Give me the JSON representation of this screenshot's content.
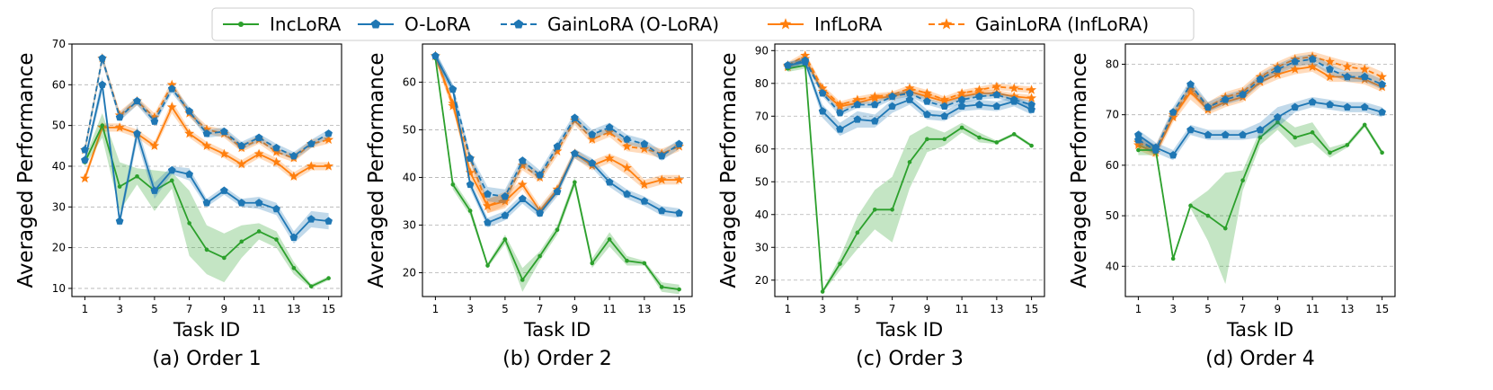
{
  "legend": {
    "entries": [
      {
        "label": "IncLoRA",
        "color": "#2ca02c",
        "dash": "solid",
        "marker": "dot"
      },
      {
        "label": "O-LoRA",
        "color": "#1f77b4",
        "dash": "solid",
        "marker": "pentagon"
      },
      {
        "label": "GainLoRA (O-LoRA)",
        "color": "#1f77b4",
        "dash": "dashed",
        "marker": "pentagon"
      },
      {
        "label": "InfLoRA",
        "color": "#ff7f0e",
        "dash": "solid",
        "marker": "star"
      },
      {
        "label": "GainLoRA (InfLoRA)",
        "color": "#ff7f0e",
        "dash": "dashed",
        "marker": "star"
      }
    ]
  },
  "chart_data": [
    {
      "type": "line",
      "caption": "(a) Order 1",
      "xlabel": "Task ID",
      "ylabel": "Averaged Performance",
      "x": [
        1,
        2,
        3,
        4,
        5,
        6,
        7,
        8,
        9,
        10,
        11,
        12,
        13,
        14,
        15
      ],
      "xticks": [
        "1",
        "3",
        "5",
        "7",
        "9",
        "11",
        "13",
        "15"
      ],
      "ylim": [
        8,
        70
      ],
      "yticks": [
        10,
        20,
        30,
        40,
        50,
        60,
        70
      ],
      "series": [
        {
          "name": "IncLoRA",
          "values": [
            41,
            50,
            35,
            37.5,
            34,
            36.5,
            26,
            19.5,
            17.5,
            21.5,
            24,
            22,
            15,
            10.5,
            12.5
          ],
          "band": [
            1,
            3,
            6,
            2,
            5,
            2,
            8,
            6,
            6,
            4,
            2,
            2,
            1.5,
            0.5,
            0.5
          ]
        },
        {
          "name": "O-LoRA",
          "values": [
            41.5,
            60,
            26.5,
            48,
            34,
            39,
            38,
            31,
            34,
            31,
            31,
            29.5,
            22.5,
            27,
            26.5
          ],
          "band": [
            1,
            2,
            1.5,
            2,
            2,
            1,
            1.5,
            1,
            1,
            1,
            1.5,
            1.5,
            1.5,
            2,
            2
          ]
        },
        {
          "name": "GainLoRA (O-LoRA)",
          "values": [
            44,
            66.5,
            52,
            56,
            51,
            59,
            53.5,
            48,
            48.5,
            45,
            47,
            44.5,
            42.5,
            45.5,
            48
          ],
          "band": [
            1,
            1,
            1,
            1,
            1,
            1,
            1,
            1,
            1,
            1,
            1,
            1,
            1,
            1,
            1
          ]
        },
        {
          "name": "InfLoRA",
          "values": [
            37,
            49.5,
            49.5,
            48,
            45,
            54.5,
            48,
            45,
            43,
            40.5,
            43,
            41,
            37.5,
            40,
            40
          ],
          "band": [
            1,
            1,
            1,
            1,
            1,
            1.5,
            1,
            1,
            1,
            1,
            1,
            1,
            1,
            1,
            1
          ]
        },
        {
          "name": "GainLoRA (InfLoRA)",
          "values": [
            44,
            66.5,
            52.5,
            56,
            52,
            60,
            53,
            49,
            48,
            44.5,
            46.5,
            43.5,
            42,
            45.5,
            46.5
          ],
          "band": [
            1,
            1,
            1,
            1,
            1,
            1,
            1,
            1,
            1,
            1,
            1,
            1,
            1,
            1,
            1
          ]
        }
      ]
    },
    {
      "type": "line",
      "caption": "(b) Order 2",
      "xlabel": "Task ID",
      "ylabel": "Averaged Performance",
      "x": [
        1,
        2,
        3,
        4,
        5,
        6,
        7,
        8,
        9,
        10,
        11,
        12,
        13,
        14,
        15
      ],
      "xticks": [
        "1",
        "3",
        "5",
        "7",
        "9",
        "11",
        "13",
        "15"
      ],
      "ylim": [
        15,
        68
      ],
      "yticks": [
        20,
        30,
        40,
        50,
        60
      ],
      "series": [
        {
          "name": "IncLoRA",
          "values": [
            65,
            38.5,
            33,
            21.5,
            27,
            18.5,
            23.5,
            29,
            39,
            22,
            27,
            22.5,
            22,
            17,
            16.5
          ],
          "band": [
            1,
            1,
            1,
            0.5,
            1,
            2.5,
            1,
            1,
            1,
            1,
            1.5,
            1,
            0.5,
            1,
            1
          ]
        },
        {
          "name": "O-LoRA",
          "values": [
            65.5,
            58.5,
            38.5,
            30.5,
            32,
            35.5,
            32.5,
            37,
            45,
            43,
            39,
            36.5,
            35,
            33,
            32.5
          ],
          "band": [
            1,
            1,
            1,
            1,
            1,
            1,
            1,
            1,
            1,
            1,
            1,
            1,
            1,
            1,
            1
          ]
        },
        {
          "name": "GainLoRA (O-LoRA)",
          "values": [
            65.5,
            58.5,
            44,
            36.5,
            36,
            43.5,
            40.5,
            46.5,
            52.5,
            49,
            50.5,
            48,
            47,
            44.5,
            47
          ],
          "band": [
            1,
            1,
            1,
            1.5,
            1.5,
            1,
            1,
            1,
            1,
            1,
            1,
            1,
            1,
            1,
            1
          ]
        },
        {
          "name": "InfLoRA",
          "values": [
            65.5,
            55.5,
            41,
            34,
            35,
            38.5,
            33,
            37.5,
            45,
            42.5,
            44,
            42,
            38.5,
            39.5,
            39.5
          ],
          "band": [
            1,
            1,
            1.5,
            1.5,
            1.5,
            1,
            1,
            1,
            1,
            1,
            1,
            1.5,
            1,
            1,
            1
          ]
        },
        {
          "name": "GainLoRA (InfLoRA)",
          "values": [
            65.5,
            55,
            44,
            34,
            35.5,
            42.5,
            40,
            45.5,
            52,
            48,
            49.5,
            46.5,
            46,
            45,
            46.5
          ],
          "band": [
            1,
            1,
            1,
            1.5,
            1.5,
            1,
            1,
            1,
            1,
            1,
            1,
            1,
            1,
            1,
            1
          ]
        }
      ]
    },
    {
      "type": "line",
      "caption": "(c) Order 3",
      "xlabel": "Task ID",
      "ylabel": "Averaged Performance",
      "x": [
        1,
        2,
        3,
        4,
        5,
        6,
        7,
        8,
        9,
        10,
        11,
        12,
        13,
        14,
        15
      ],
      "xticks": [
        "1",
        "3",
        "5",
        "7",
        "9",
        "11",
        "13",
        "15"
      ],
      "ylim": [
        15,
        92
      ],
      "yticks": [
        20,
        30,
        40,
        50,
        60,
        70,
        80,
        90
      ],
      "series": [
        {
          "name": "IncLoRA",
          "values": [
            84.5,
            85.5,
            16.5,
            25,
            34.5,
            41.5,
            41.5,
            56,
            63,
            63,
            66.5,
            63.5,
            62,
            64.5,
            61
          ],
          "band": [
            1,
            1,
            0.5,
            2,
            5,
            6,
            10,
            8,
            4,
            2,
            1.5,
            1.5,
            0.5,
            0.5,
            0.5
          ]
        },
        {
          "name": "O-LoRA",
          "values": [
            85.5,
            86.5,
            71.5,
            66,
            69,
            68.5,
            73,
            75,
            70.5,
            70,
            73,
            73.5,
            73,
            74.5,
            72
          ],
          "band": [
            1,
            1,
            2,
            2,
            2.5,
            2,
            2,
            1.5,
            1.5,
            1.5,
            1.5,
            1.5,
            1.5,
            1.5,
            1.5
          ]
        },
        {
          "name": "GainLoRA (O-LoRA)",
          "values": [
            85.5,
            87,
            77,
            71,
            73.5,
            73.5,
            76,
            77,
            74.5,
            73,
            75,
            76,
            76.5,
            75,
            73.5
          ],
          "band": [
            1,
            1,
            1,
            1,
            1,
            1,
            1,
            1,
            1,
            1,
            1,
            1,
            1,
            1,
            1
          ]
        },
        {
          "name": "InfLoRA",
          "values": [
            85,
            87.5,
            77.5,
            73,
            74,
            75.5,
            76,
            77.5,
            76,
            74.5,
            76,
            77,
            77,
            76,
            75.5
          ],
          "band": [
            1,
            1,
            1,
            1,
            1,
            1,
            1,
            1,
            1,
            1,
            1,
            1,
            1,
            1,
            1
          ]
        },
        {
          "name": "GainLoRA (InfLoRA)",
          "values": [
            85.5,
            88.5,
            78.5,
            73.5,
            75,
            76,
            76.5,
            78.5,
            77,
            75,
            77,
            78,
            79,
            78.5,
            78
          ],
          "band": [
            1,
            1,
            1,
            1,
            1,
            1,
            1,
            1,
            1,
            1,
            1,
            1,
            1,
            1,
            1
          ]
        }
      ]
    },
    {
      "type": "line",
      "caption": "(d) Order 4",
      "xlabel": "Task ID",
      "ylabel": "Averaged Performance",
      "x": [
        1,
        2,
        3,
        4,
        5,
        6,
        7,
        8,
        9,
        10,
        11,
        12,
        13,
        14,
        15
      ],
      "xticks": [
        "1",
        "3",
        "5",
        "7",
        "9",
        "11",
        "13",
        "15"
      ],
      "ylim": [
        34,
        84
      ],
      "yticks": [
        40,
        50,
        60,
        70,
        80
      ],
      "series": [
        {
          "name": "IncLoRA",
          "values": [
            63,
            63,
            41.5,
            52,
            50,
            47.5,
            57,
            65.5,
            68.5,
            65.5,
            66.5,
            62.5,
            64,
            68,
            62.5
          ],
          "band": [
            1,
            1,
            0.5,
            0.5,
            5,
            11,
            2,
            1.5,
            1.5,
            2,
            2,
            1,
            0.5,
            0.5,
            0.5
          ]
        },
        {
          "name": "O-LoRA",
          "values": [
            66,
            63.5,
            62,
            67,
            66,
            66,
            66,
            67,
            69.5,
            71.5,
            72.5,
            72,
            71.5,
            71.5,
            70.5
          ],
          "band": [
            1,
            1,
            1,
            1,
            1,
            1,
            1,
            1.5,
            2,
            1,
            1,
            1,
            1,
            1,
            1
          ]
        },
        {
          "name": "GainLoRA (O-LoRA)",
          "values": [
            65,
            63,
            70.5,
            76,
            71.5,
            73,
            74,
            77,
            79,
            80.5,
            81,
            79,
            77.5,
            77.5,
            76
          ],
          "band": [
            1,
            1,
            1,
            1,
            1,
            1,
            1,
            1,
            1,
            1,
            1,
            1,
            1,
            1,
            1
          ]
        },
        {
          "name": "InfLoRA",
          "values": [
            64,
            62.5,
            69.5,
            74.5,
            71,
            72.5,
            73.5,
            76.5,
            78,
            79,
            79.5,
            77.5,
            77.5,
            77,
            75.5
          ],
          "band": [
            1,
            1,
            1,
            1.5,
            1,
            1,
            1,
            1,
            1,
            1,
            1,
            1,
            1,
            1,
            1
          ]
        },
        {
          "name": "GainLoRA (InfLoRA)",
          "values": [
            64.5,
            63,
            70,
            75,
            71.5,
            73.5,
            74.5,
            77.5,
            79.5,
            81,
            81.5,
            80.5,
            79.5,
            79,
            77.5
          ],
          "band": [
            1,
            1,
            1,
            1,
            1,
            1,
            1,
            1,
            1,
            1,
            1,
            1,
            1,
            1,
            1
          ]
        }
      ]
    }
  ]
}
